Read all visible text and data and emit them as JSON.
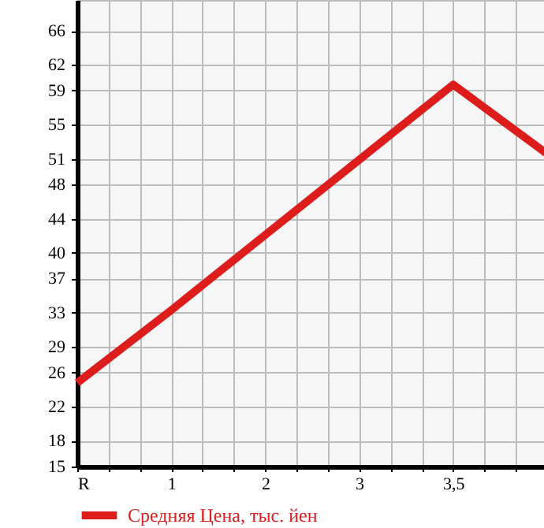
{
  "chart_data": {
    "type": "line",
    "categories": [
      "R",
      "1",
      "2",
      "3",
      "3,5",
      null
    ],
    "series": [
      {
        "name": "Средняя Цена, тыс. йен",
        "color": "#dd1c1c",
        "values": [
          24.8,
          33.3,
          42.1,
          50.9,
          59.7,
          51.6
        ]
      }
    ],
    "ylim": [
      15,
      69.6
    ],
    "yticks": [
      15,
      18,
      22,
      26,
      29,
      33,
      37,
      40,
      44,
      48,
      51,
      55,
      59,
      62,
      66
    ],
    "grid": true,
    "legend": "bottom",
    "marker": "none",
    "line_style": "solid"
  }
}
